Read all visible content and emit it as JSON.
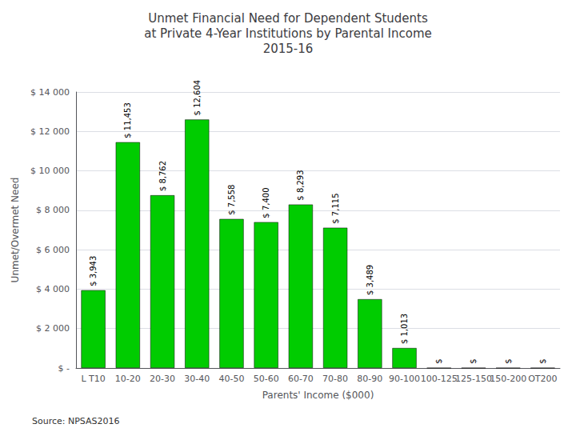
{
  "chart_data": {
    "type": "bar",
    "title": "Unmet Financial Need for Dependent Students\nat Private 4-Year Institutions by Parental Income\n2015-16",
    "xlabel": "Parents' Income ($000)",
    "ylabel": "Unmet/Overmet Need",
    "categories": [
      "L T10",
      "10-20",
      "20-30",
      "30-40",
      "40-50",
      "50-60",
      "60-70",
      "70-80",
      "80-90",
      "90-100",
      "100-125",
      "125-150",
      "150-200",
      "OT200"
    ],
    "values": [
      3943,
      11453,
      8762,
      12604,
      7558,
      7400,
      8293,
      7115,
      3489,
      1013,
      0,
      0,
      0,
      0
    ],
    "value_labels": [
      "$ 3,943",
      "$ 11,453",
      "$ 8,762",
      "$ 12,604",
      "$ 7,558",
      "$ 7,400",
      "$ 8,293",
      "$ 7,115",
      "$ 3,489",
      "$ 1,013",
      "$",
      "$",
      "$",
      "$"
    ],
    "data_labels": true,
    "color": "#00CC00",
    "ylim": [
      0,
      14000
    ],
    "yticks": [
      {
        "value": 0,
        "label": "$ -"
      },
      {
        "value": 2000,
        "label": "$ 2 000"
      },
      {
        "value": 4000,
        "label": "$ 4 000"
      },
      {
        "value": 6000,
        "label": "$ 6 000"
      },
      {
        "value": 8000,
        "label": "$ 8 000"
      },
      {
        "value": 10000,
        "label": "$ 10 000"
      },
      {
        "value": 12000,
        "label": "$ 12 000"
      },
      {
        "value": 14000,
        "label": "$ 14 000"
      }
    ],
    "grid": true,
    "annotations": [
      "Source: NPSAS2016"
    ]
  }
}
